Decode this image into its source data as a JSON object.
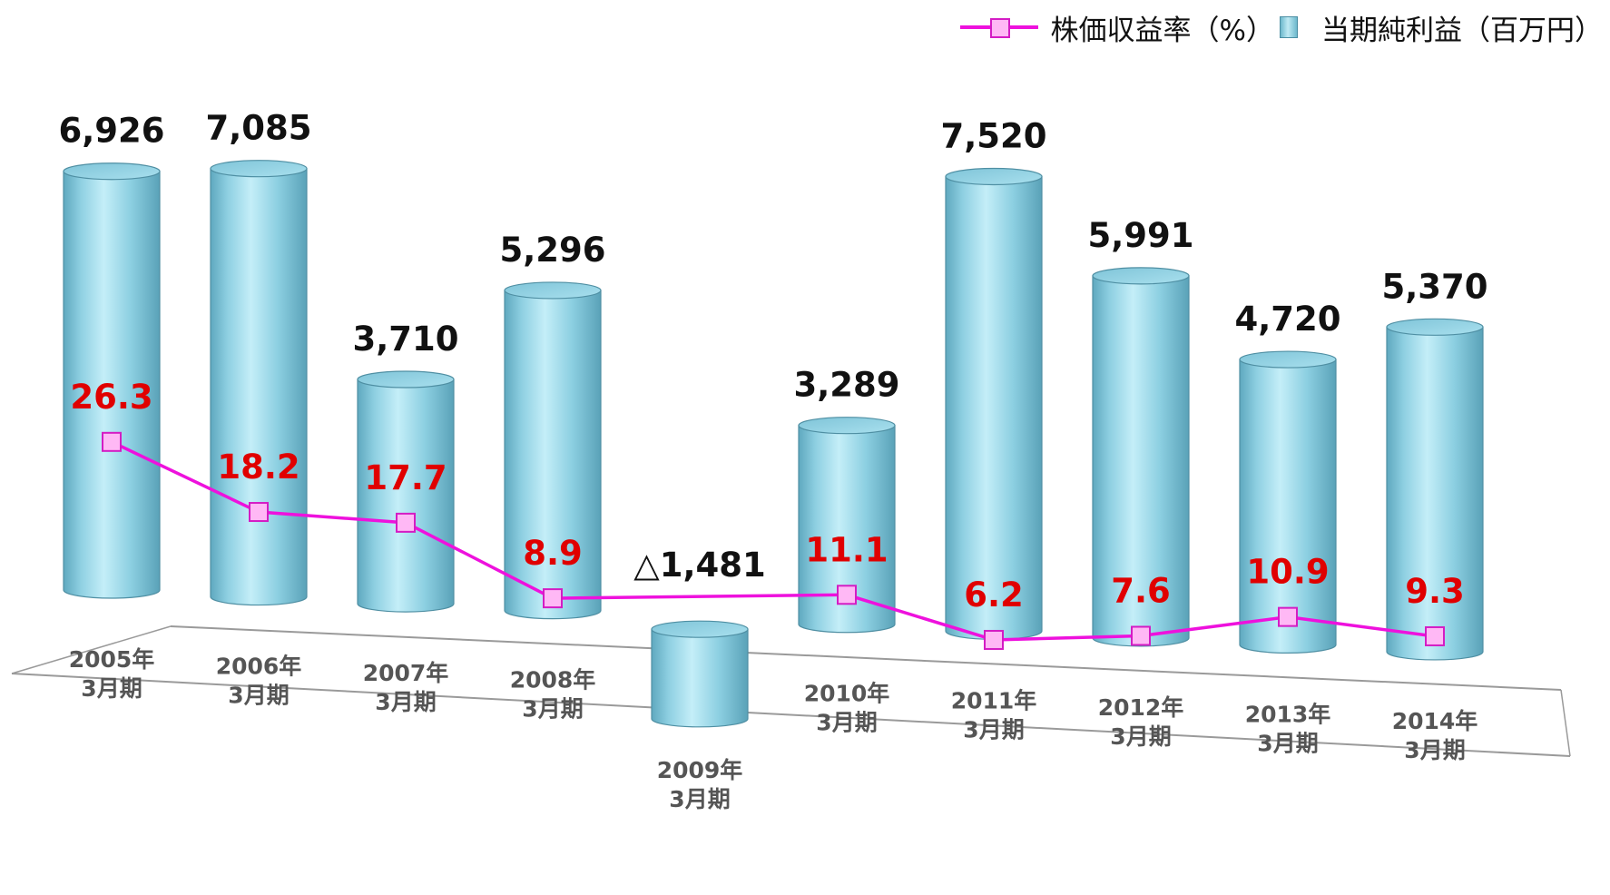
{
  "chart_data": {
    "type": "bar",
    "categories": [
      [
        "2005年",
        "3月期"
      ],
      [
        "2006年",
        "3月期"
      ],
      [
        "2007年",
        "3月期"
      ],
      [
        "2008年",
        "3月期"
      ],
      [
        "2009年",
        "3月期"
      ],
      [
        "2010年",
        "3月期"
      ],
      [
        "2011年",
        "3月期"
      ],
      [
        "2012年",
        "3月期"
      ],
      [
        "2013年",
        "3月期"
      ],
      [
        "2014年",
        "3月期"
      ]
    ],
    "series": [
      {
        "name": "当期純利益（百万円）",
        "kind": "bar-3d-cylinder",
        "values": [
          6926,
          7085,
          3710,
          5296,
          -1481,
          3289,
          7520,
          5991,
          4720,
          5370
        ],
        "labels": [
          "6,926",
          "7,085",
          "3,710",
          "5,296",
          "△1,481",
          "3,289",
          "7,520",
          "5,991",
          "4,720",
          "5,370"
        ],
        "color": "#8fd3e6"
      },
      {
        "name": "株価収益率（%）",
        "kind": "line",
        "values": [
          26.3,
          18.2,
          17.7,
          8.9,
          null,
          11.1,
          6.2,
          7.6,
          10.9,
          9.3
        ],
        "labels": [
          "26.3",
          "18.2",
          "17.7",
          "8.9",
          "",
          "11.1",
          "6.2",
          "7.6",
          "10.9",
          "9.3"
        ],
        "color": "#ee11dd",
        "label_color": "#e00000"
      }
    ],
    "title": "",
    "xlabel": "",
    "ylabel": "",
    "legend": "top-right",
    "grid": false
  },
  "legend": {
    "line_label": "株価収益率（%）",
    "bar_label": "当期純利益（百万円）"
  }
}
